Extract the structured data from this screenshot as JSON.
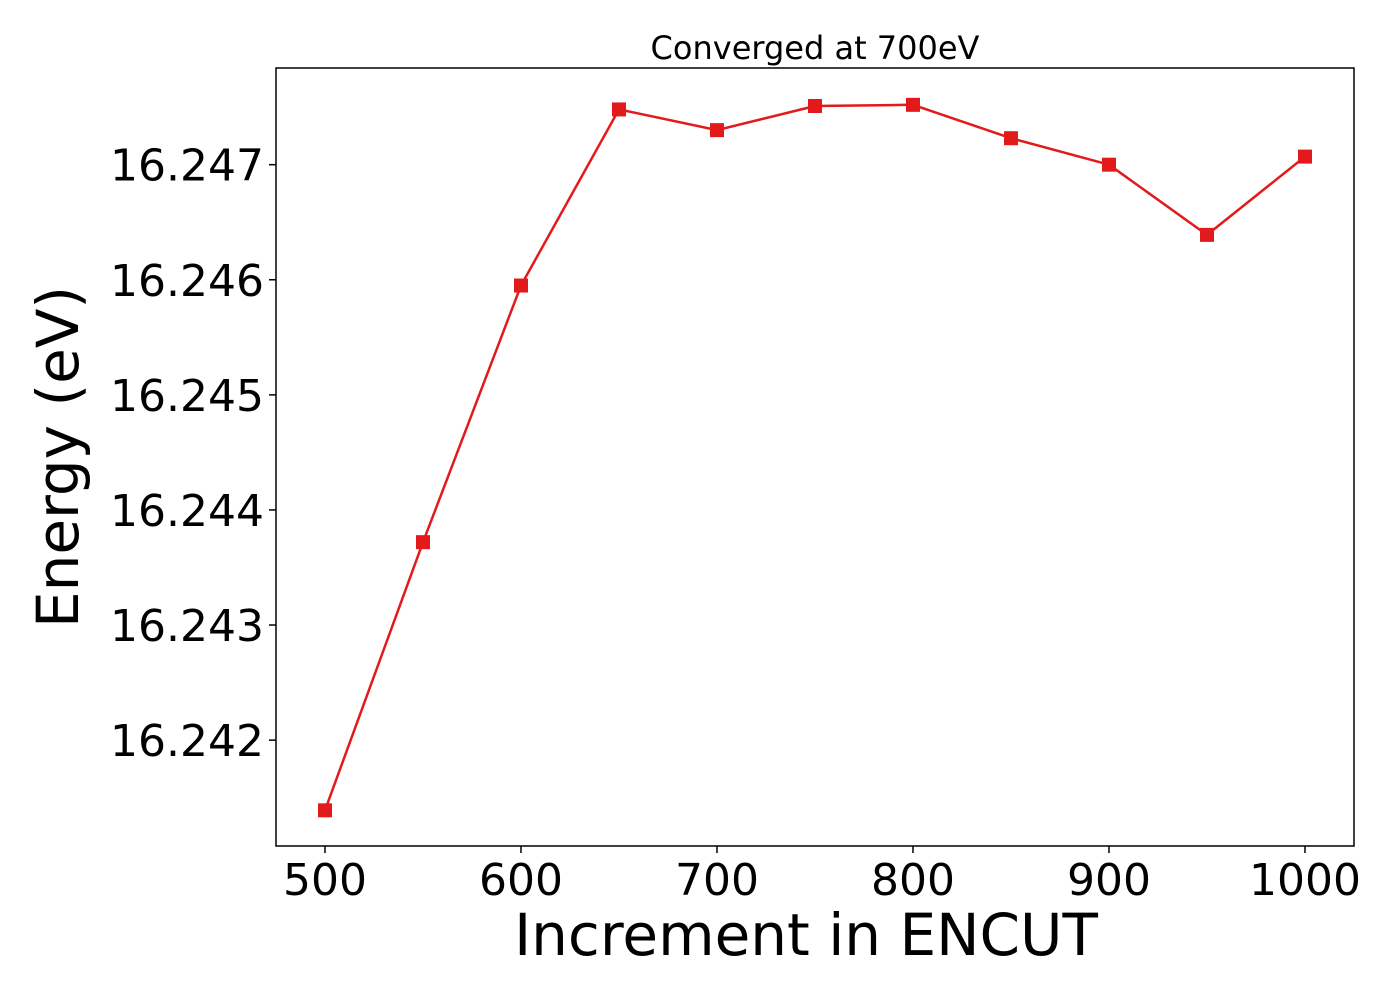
{
  "chart_data": {
    "type": "line",
    "title": "Converged at 700eV",
    "xlabel": "Increment in ENCUT",
    "ylabel": "Energy (eV)",
    "x": [
      500,
      550,
      600,
      650,
      700,
      750,
      800,
      850,
      900,
      950,
      1000
    ],
    "series": [
      {
        "values": [
          16.24139,
          16.24372,
          16.24595,
          16.24748,
          16.2473,
          16.24751,
          16.24752,
          16.24723,
          16.247,
          16.24639,
          16.24707
        ],
        "color": "#e31a1c",
        "marker": "square"
      }
    ],
    "xlim": [
      475,
      1025
    ],
    "ylim": [
      16.24108,
      16.24784
    ],
    "xticks": [
      500,
      600,
      700,
      800,
      900,
      1000
    ],
    "xtick_labels": [
      "500",
      "600",
      "700",
      "800",
      "900",
      "1000"
    ],
    "yticks": [
      16.242,
      16.243,
      16.244,
      16.245,
      16.246,
      16.247
    ],
    "ytick_labels": [
      "16.242",
      "16.243",
      "16.244",
      "16.245",
      "16.246",
      "16.247"
    ],
    "grid": false,
    "legend": "none"
  }
}
